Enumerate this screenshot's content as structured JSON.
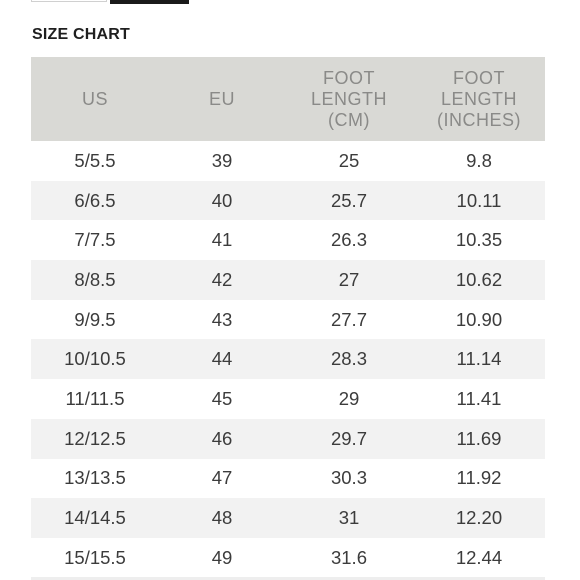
{
  "title": "SIZE CHART",
  "table": {
    "headers": [
      [
        "US"
      ],
      [
        "EU"
      ],
      [
        "FOOT",
        "LENGTH",
        "(CM)"
      ],
      [
        "FOOT",
        "LENGTH",
        "(INCHES)"
      ]
    ],
    "rows": [
      [
        "5/5.5",
        "39",
        "25",
        "9.8"
      ],
      [
        "6/6.5",
        "40",
        "25.7",
        "10.11"
      ],
      [
        "7/7.5",
        "41",
        "26.3",
        "10.35"
      ],
      [
        "8/8.5",
        "42",
        "27",
        "10.62"
      ],
      [
        "9/9.5",
        "43",
        "27.7",
        "10.90"
      ],
      [
        "10/10.5",
        "44",
        "28.3",
        "11.14"
      ],
      [
        "11/11.5",
        "45",
        "29",
        "11.41"
      ],
      [
        "12/12.5",
        "46",
        "29.7",
        "11.69"
      ],
      [
        "13/13.5",
        "47",
        "30.3",
        "11.92"
      ],
      [
        "14/14.5",
        "48",
        "31",
        "12.20"
      ],
      [
        "15/15.5",
        "49",
        "31.6",
        "12.44"
      ]
    ]
  }
}
